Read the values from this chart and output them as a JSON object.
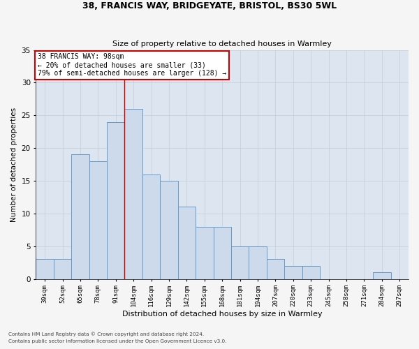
{
  "title1": "38, FRANCIS WAY, BRIDGEYATE, BRISTOL, BS30 5WL",
  "title2": "Size of property relative to detached houses in Warmley",
  "xlabel": "Distribution of detached houses by size in Warmley",
  "ylabel": "Number of detached properties",
  "categories": [
    "39sqm",
    "52sqm",
    "65sqm",
    "78sqm",
    "91sqm",
    "104sqm",
    "116sqm",
    "129sqm",
    "142sqm",
    "155sqm",
    "168sqm",
    "181sqm",
    "194sqm",
    "207sqm",
    "220sqm",
    "233sqm",
    "245sqm",
    "258sqm",
    "271sqm",
    "284sqm",
    "297sqm"
  ],
  "values": [
    3,
    3,
    19,
    18,
    24,
    26,
    16,
    15,
    11,
    8,
    8,
    5,
    5,
    3,
    2,
    2,
    0,
    0,
    0,
    1,
    0
  ],
  "bar_color": "#ccdaeb",
  "bar_edge_color": "#6699cc",
  "grid_color": "#c8d0dc",
  "background_color": "#dde6f0",
  "fig_background": "#f5f5f5",
  "vline_x": 4.5,
  "vline_color": "#cc0000",
  "annotation_line1": "38 FRANCIS WAY: 98sqm",
  "annotation_line2": "← 20% of detached houses are smaller (33)",
  "annotation_line3": "79% of semi-detached houses are larger (128) →",
  "annotation_box_color": "#ffffff",
  "annotation_box_edge": "#cc0000",
  "ylim": [
    0,
    35
  ],
  "yticks": [
    0,
    5,
    10,
    15,
    20,
    25,
    30,
    35
  ],
  "footnote1": "Contains HM Land Registry data © Crown copyright and database right 2024.",
  "footnote2": "Contains public sector information licensed under the Open Government Licence v3.0."
}
